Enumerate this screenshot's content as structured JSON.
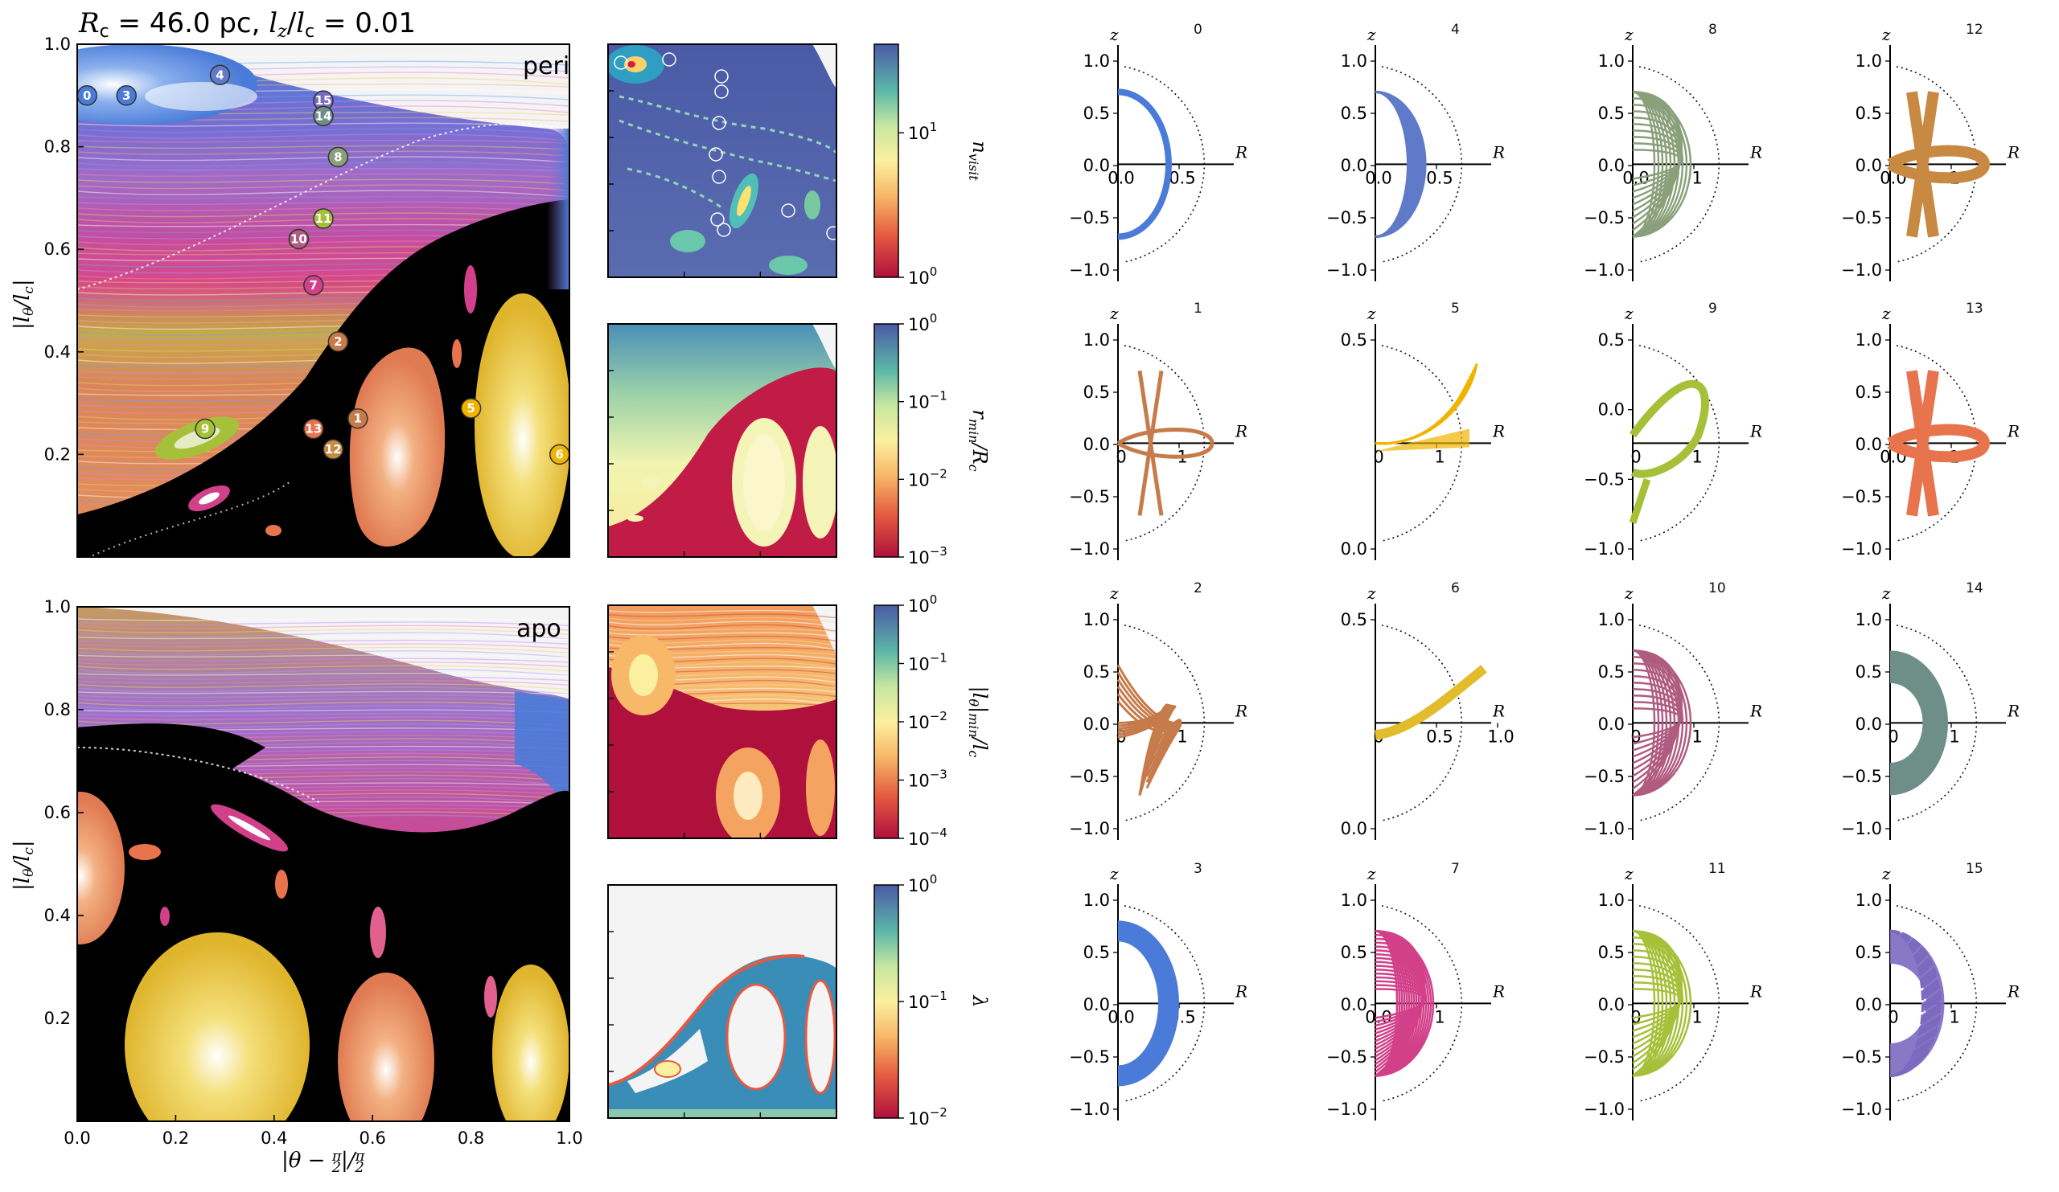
{
  "title": {
    "text_prefix": "R",
    "text_sub": "c",
    "text_mid": " = 46.0 pc, ",
    "text_lz": "l",
    "text_lz_sub": "z",
    "text_slash": "/",
    "text_lc": "l",
    "text_lc_sub": "c",
    "text_suffix": " = 0.01"
  },
  "colors": {
    "blue": "#4a7bd8",
    "purple": "#8a62c8",
    "magenta": "#d2408a",
    "pink": "#e0608e",
    "orange": "#e98b5a",
    "salmon": "#e8744e",
    "yellow": "#e2bc2a",
    "green": "#a7c03a",
    "sage": "#8aa07a",
    "plum": "#b05c80",
    "teal": "#6e8f88",
    "tan": "#c88a42",
    "brown": "#c77a4a",
    "gold": "#f0b400",
    "lilac": "#7b6ac0",
    "steel": "#5e7ac8",
    "fill_black": "#000000",
    "bg_gray": "#f4f4f4"
  },
  "chart_data": [
    {
      "id": "peri",
      "type": "scatter",
      "label": "peri",
      "xlabel": "|θ − π/2|/(π/2)",
      "ylabel": "|l_θ/l_c|",
      "xlim": [
        0,
        1
      ],
      "ylim": [
        0,
        1
      ],
      "xticks": [
        "0.0",
        "0.2",
        "0.4",
        "0.6",
        "0.8",
        "1.0"
      ],
      "yticks": [
        "0.2",
        "0.4",
        "0.6",
        "0.8",
        "1.0"
      ],
      "markers": [
        {
          "n": "0",
          "x": 0.02,
          "y": 0.9,
          "color": "#4a7bd8"
        },
        {
          "n": "3",
          "x": 0.1,
          "y": 0.9,
          "color": "#4a7bd8"
        },
        {
          "n": "4",
          "x": 0.29,
          "y": 0.94,
          "color": "#5e7ac8"
        },
        {
          "n": "15",
          "x": 0.5,
          "y": 0.89,
          "color": "#7b6ac0"
        },
        {
          "n": "14",
          "x": 0.5,
          "y": 0.86,
          "color": "#6e8f88"
        },
        {
          "n": "8",
          "x": 0.53,
          "y": 0.78,
          "color": "#8aa07a"
        },
        {
          "n": "11",
          "x": 0.5,
          "y": 0.66,
          "color": "#a7c03a"
        },
        {
          "n": "10",
          "x": 0.45,
          "y": 0.62,
          "color": "#b05c80"
        },
        {
          "n": "7",
          "x": 0.48,
          "y": 0.53,
          "color": "#d2408a"
        },
        {
          "n": "2",
          "x": 0.53,
          "y": 0.42,
          "color": "#c77a4a"
        },
        {
          "n": "1",
          "x": 0.57,
          "y": 0.27,
          "color": "#c77a4a"
        },
        {
          "n": "13",
          "x": 0.48,
          "y": 0.25,
          "color": "#e8744e"
        },
        {
          "n": "12",
          "x": 0.52,
          "y": 0.21,
          "color": "#c88a42"
        },
        {
          "n": "9",
          "x": 0.26,
          "y": 0.25,
          "color": "#a7c03a"
        },
        {
          "n": "5",
          "x": 0.8,
          "y": 0.29,
          "color": "#f0b400"
        },
        {
          "n": "6",
          "x": 0.98,
          "y": 0.2,
          "color": "#f0b400"
        }
      ]
    },
    {
      "id": "apo",
      "type": "scatter",
      "label": "apo",
      "xlabel": "|θ − π/2|/(π/2)",
      "ylabel": "|l_θ/l_c|",
      "xlim": [
        0,
        1
      ],
      "ylim": [
        0,
        1
      ],
      "xticks": [
        "0.0",
        "0.2",
        "0.4",
        "0.6",
        "0.8",
        "1.0"
      ],
      "yticks": [
        "0.2",
        "0.4",
        "0.6",
        "0.8",
        "1.0"
      ]
    },
    {
      "id": "nvisit",
      "type": "heatmap",
      "colorbar_label": "n_visit",
      "colorbar_ticks": [
        "10^1",
        "10^0"
      ]
    },
    {
      "id": "rmin",
      "type": "heatmap",
      "colorbar_label": "r_min/R_c",
      "colorbar_ticks": [
        "10^0",
        "10^-1",
        "10^-2",
        "10^-3"
      ]
    },
    {
      "id": "lthetamin",
      "type": "heatmap",
      "colorbar_label": "|l_θ|_min/l_c",
      "colorbar_ticks": [
        "10^0",
        "10^-1",
        "10^-2",
        "10^-3",
        "10^-4"
      ]
    },
    {
      "id": "lambda",
      "type": "heatmap",
      "colorbar_label": "λ",
      "colorbar_ticks": [
        "10^0",
        "10^-1",
        "10^-2"
      ]
    }
  ],
  "orbits": [
    {
      "n": "0",
      "color": "#4a7bd8",
      "xticks": [
        "0.0",
        "0.5"
      ],
      "yticks": [
        "1.0",
        "0.5",
        "0.0",
        "−0.5",
        "−1.0"
      ],
      "shape": "arc_thin"
    },
    {
      "n": "4",
      "color": "#5e7ac8",
      "xticks": [
        "0.0",
        "0.5"
      ],
      "yticks": [
        "1.0",
        "0.5",
        "0.0",
        "−0.5",
        "−1.0"
      ],
      "shape": "crescent_lines"
    },
    {
      "n": "8",
      "color": "#8aa07a",
      "xticks": [
        "0.0",
        "1"
      ],
      "yticks": [
        "1.0",
        "0.5",
        "0.0",
        "−0.5",
        "−1.0"
      ],
      "shape": "mesh"
    },
    {
      "n": "12",
      "color": "#c88a42",
      "xticks": [
        "0.0",
        "1"
      ],
      "yticks": [
        "1.0",
        "0.5",
        "0.0",
        "−0.5",
        "−1.0"
      ],
      "shape": "x_loop"
    },
    {
      "n": "1",
      "color": "#c77a4a",
      "xticks": [
        "0",
        "1"
      ],
      "yticks": [
        "1.0",
        "0.5",
        "0.0",
        "−0.5",
        "−1.0"
      ],
      "shape": "x_loop_thin"
    },
    {
      "n": "5",
      "color": "#f0b400",
      "xticks": [
        "0",
        "1"
      ],
      "yticks": [
        "0.5",
        "0.0"
      ],
      "shape": "fan"
    },
    {
      "n": "9",
      "color": "#a7c03a",
      "xticks": [
        "0",
        "1"
      ],
      "yticks": [
        "0.5",
        "0.0",
        "−0.5",
        "−1.0"
      ],
      "shape": "loop"
    },
    {
      "n": "13",
      "color": "#e8744e",
      "xticks": [
        "0.0",
        "1"
      ],
      "yticks": [
        "1.0",
        "0.5",
        "0.0",
        "−0.5",
        "−1.0"
      ],
      "shape": "x_loop"
    },
    {
      "n": "2",
      "color": "#c77a4a",
      "xticks": [
        "0",
        "1"
      ],
      "yticks": [
        "1.0",
        "0.5",
        "0.0",
        "−0.5",
        "−1.0"
      ],
      "shape": "tangle"
    },
    {
      "n": "6",
      "color": "#e2bc2a",
      "xticks": [
        "0",
        "0.5",
        "1.0"
      ],
      "yticks": [
        "0.5",
        "0.0"
      ],
      "shape": "line"
    },
    {
      "n": "10",
      "color": "#b05c80",
      "xticks": [
        "0",
        "1"
      ],
      "yticks": [
        "1.0",
        "0.5",
        "0.0",
        "−0.5",
        "−1.0"
      ],
      "shape": "mesh"
    },
    {
      "n": "14",
      "color": "#6e8f88",
      "xticks": [
        "0",
        "1"
      ],
      "yticks": [
        "1.0",
        "0.5",
        "0.0",
        "−0.5",
        "−1.0"
      ],
      "shape": "crescent_solid"
    },
    {
      "n": "3",
      "color": "#4a7bd8",
      "xticks": [
        "0.0",
        "0.5"
      ],
      "yticks": [
        "1.0",
        "0.5",
        "0.0",
        "−0.5",
        "−1.0"
      ],
      "shape": "arc_thick"
    },
    {
      "n": "7",
      "color": "#d2408a",
      "xticks": [
        "0.0",
        "1"
      ],
      "yticks": [
        "1.0",
        "0.5",
        "0.0",
        "−0.5",
        "−1.0"
      ],
      "shape": "mesh_dense"
    },
    {
      "n": "11",
      "color": "#a7c03a",
      "xticks": [
        "0",
        "1"
      ],
      "yticks": [
        "1.0",
        "0.5",
        "0.0",
        "−0.5",
        "−1.0"
      ],
      "shape": "mesh"
    },
    {
      "n": "15",
      "color": "#7b6ac0",
      "xticks": [
        "0",
        "1"
      ],
      "yticks": [
        "1.0",
        "0.5",
        "0.0",
        "−0.5",
        "−1.0"
      ],
      "shape": "crescent_dashed"
    }
  ],
  "axis_letters": {
    "z": "z",
    "R": "R"
  }
}
